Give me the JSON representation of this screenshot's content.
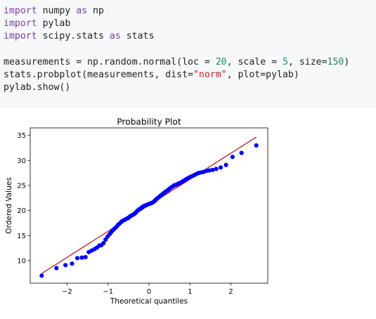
{
  "code_cell": {
    "lines": [
      [
        {
          "t": "import",
          "c": "kw"
        },
        {
          "t": " numpy "
        },
        {
          "t": "as",
          "c": "kw"
        },
        {
          "t": " np"
        }
      ],
      [
        {
          "t": "import",
          "c": "kw"
        },
        {
          "t": " pylab"
        }
      ],
      [
        {
          "t": "import",
          "c": "kw"
        },
        {
          "t": " scipy.stats "
        },
        {
          "t": "as",
          "c": "kw"
        },
        {
          "t": " stats"
        }
      ],
      [],
      [
        {
          "t": "measurements = np.random.normal(loc = "
        },
        {
          "t": "20",
          "c": "num"
        },
        {
          "t": ", scale = "
        },
        {
          "t": "5",
          "c": "num"
        },
        {
          "t": ", size="
        },
        {
          "t": "150",
          "c": "num"
        },
        {
          "t": ")"
        }
      ],
      [
        {
          "t": "stats.probplot(measurements, dist="
        },
        {
          "t": "\"norm\"",
          "c": "str"
        },
        {
          "t": ", plot=pylab)"
        }
      ],
      [
        {
          "t": "pylab.show()"
        }
      ]
    ]
  },
  "colors": {
    "points": "#0000ff",
    "fit_line": "#b22222",
    "keyword": "#7a3e9d",
    "number": "#1a8c6e",
    "string": "#b0272f"
  },
  "chart_data": {
    "type": "scatter",
    "title": "Probability Plot",
    "xlabel": "Theoretical quantiles",
    "ylabel": "Ordered Values",
    "xlim": [
      -2.9,
      2.9
    ],
    "ylim": [
      5.5,
      36.5
    ],
    "xticks": [
      -2,
      -1,
      0,
      1,
      2
    ],
    "xtick_labels": [
      "−2",
      "−1",
      "0",
      "1",
      "2"
    ],
    "yticks": [
      10,
      15,
      20,
      25,
      30,
      35
    ],
    "ytick_labels": [
      "10",
      "15",
      "20",
      "25",
      "30",
      "35"
    ],
    "grid": false,
    "fit_line": {
      "slope": 5.2,
      "intercept": 21.05,
      "x_range": [
        -2.62,
        2.62
      ]
    },
    "points": [
      [
        -2.62,
        7.0
      ],
      [
        -2.26,
        8.5
      ],
      [
        -2.04,
        9.1
      ],
      [
        -1.88,
        9.4
      ],
      [
        -1.75,
        10.5
      ],
      [
        -1.64,
        10.6
      ],
      [
        -1.55,
        10.7
      ],
      [
        -1.47,
        11.7
      ],
      [
        -1.4,
        12.0
      ],
      [
        -1.33,
        12.3
      ],
      [
        -1.27,
        12.6
      ],
      [
        -1.21,
        13.0
      ],
      [
        -1.16,
        13.1
      ],
      [
        -1.11,
        13.5
      ],
      [
        -1.06,
        14.2
      ],
      [
        -1.01,
        14.8
      ],
      [
        -0.96,
        15.3
      ],
      [
        -0.92,
        15.7
      ],
      [
        -0.88,
        16.1
      ],
      [
        -0.84,
        16.4
      ],
      [
        -0.8,
        16.7
      ],
      [
        -0.76,
        17.1
      ],
      [
        -0.72,
        17.4
      ],
      [
        -0.68,
        17.7
      ],
      [
        -0.65,
        17.9
      ],
      [
        -0.61,
        18.1
      ],
      [
        -0.58,
        18.2
      ],
      [
        -0.54,
        18.4
      ],
      [
        -0.51,
        18.5
      ],
      [
        -0.48,
        18.7
      ],
      [
        -0.45,
        18.9
      ],
      [
        -0.41,
        19.1
      ],
      [
        -0.38,
        19.2
      ],
      [
        -0.35,
        19.4
      ],
      [
        -0.32,
        19.6
      ],
      [
        -0.29,
        19.9
      ],
      [
        -0.26,
        20.1
      ],
      [
        -0.23,
        20.3
      ],
      [
        -0.2,
        20.4
      ],
      [
        -0.17,
        20.6
      ],
      [
        -0.15,
        20.8
      ],
      [
        -0.12,
        20.9
      ],
      [
        -0.09,
        21.0
      ],
      [
        -0.06,
        21.1
      ],
      [
        -0.03,
        21.2
      ],
      [
        0.0,
        21.3
      ],
      [
        0.03,
        21.4
      ],
      [
        0.06,
        21.5
      ],
      [
        0.09,
        21.6
      ],
      [
        0.12,
        21.8
      ],
      [
        0.15,
        22.0
      ],
      [
        0.17,
        22.2
      ],
      [
        0.2,
        22.4
      ],
      [
        0.23,
        22.6
      ],
      [
        0.26,
        22.8
      ],
      [
        0.29,
        23.0
      ],
      [
        0.32,
        23.2
      ],
      [
        0.35,
        23.4
      ],
      [
        0.38,
        23.6
      ],
      [
        0.41,
        23.8
      ],
      [
        0.45,
        24.0
      ],
      [
        0.48,
        24.2
      ],
      [
        0.51,
        24.4
      ],
      [
        0.54,
        24.6
      ],
      [
        0.58,
        24.8
      ],
      [
        0.61,
        25.0
      ],
      [
        0.65,
        25.1
      ],
      [
        0.68,
        25.2
      ],
      [
        0.72,
        25.4
      ],
      [
        0.76,
        25.5
      ],
      [
        0.8,
        25.7
      ],
      [
        0.84,
        25.9
      ],
      [
        0.88,
        26.1
      ],
      [
        0.92,
        26.3
      ],
      [
        0.96,
        26.5
      ],
      [
        1.01,
        26.7
      ],
      [
        1.06,
        26.9
      ],
      [
        1.11,
        27.1
      ],
      [
        1.16,
        27.3
      ],
      [
        1.21,
        27.5
      ],
      [
        1.27,
        27.6
      ],
      [
        1.33,
        27.7
      ],
      [
        1.4,
        27.9
      ],
      [
        1.47,
        28.0
      ],
      [
        1.55,
        28.1
      ],
      [
        1.64,
        28.3
      ],
      [
        1.75,
        28.6
      ],
      [
        1.88,
        29.1
      ],
      [
        2.04,
        30.7
      ],
      [
        2.26,
        31.5
      ],
      [
        2.62,
        33.0
      ]
    ]
  }
}
